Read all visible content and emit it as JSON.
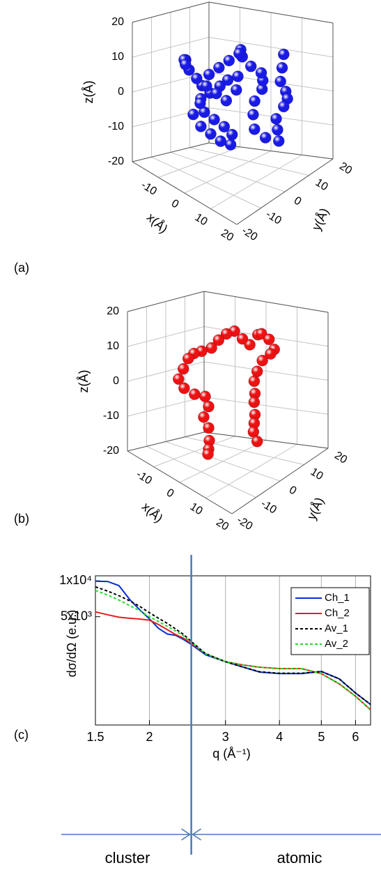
{
  "chart_data": [
    {
      "type": "scatter3d",
      "panel": "(a)",
      "color": "#1a1ae6",
      "xlabel": "x(Å)",
      "ylabel": "y(Å)",
      "zlabel": "z(Å)",
      "xlim": [
        -20,
        20
      ],
      "ylim": [
        -20,
        20
      ],
      "zlim": [
        -20,
        20
      ],
      "xticks": [
        -10,
        0,
        10,
        20
      ],
      "yticks": [
        -20,
        -10,
        0,
        10,
        20
      ],
      "zticks": [
        -20,
        -10,
        0,
        10,
        20
      ],
      "x": [
        10,
        11,
        12,
        13,
        12,
        10,
        9,
        11,
        13,
        10,
        7,
        5,
        4,
        5,
        6,
        7,
        5,
        2,
        0,
        -2,
        -4,
        -6,
        -8,
        -9,
        -8,
        -6,
        -4,
        -2,
        0,
        1,
        -1,
        -3,
        -5,
        -7,
        -6,
        -4,
        -2,
        0,
        2,
        3,
        1,
        -1,
        -3,
        -5,
        -7,
        -9,
        -11,
        -12
      ],
      "y": [
        12,
        10,
        8,
        9,
        11,
        12,
        10,
        8,
        6,
        4,
        3,
        5,
        7,
        9,
        8,
        6,
        4,
        4,
        6,
        8,
        6,
        4,
        2,
        0,
        -2,
        -3,
        -1,
        1,
        2,
        0,
        -2,
        -4,
        -6,
        -7,
        -5,
        -3,
        -1,
        0,
        2,
        0,
        -2,
        -4,
        -6,
        -8,
        -9,
        -8,
        -6,
        -4
      ],
      "z": [
        12,
        9,
        6,
        3,
        0,
        -3,
        -6,
        -8,
        -10,
        -9,
        -7,
        -4,
        -1,
        2,
        5,
        8,
        10,
        12,
        13,
        11,
        9,
        7,
        5,
        2,
        -1,
        -4,
        -6,
        -8,
        -10,
        -12,
        -11,
        -9,
        -7,
        -4,
        -1,
        2,
        4,
        6,
        7,
        4,
        1,
        3,
        5,
        7,
        9,
        11,
        10,
        8
      ]
    },
    {
      "type": "scatter3d",
      "panel": "(b)",
      "color": "#ee1111",
      "xlabel": "x(Å)",
      "ylabel": "y(Å)",
      "zlabel": "z(Å)",
      "xlim": [
        -20,
        20
      ],
      "ylim": [
        -20,
        20
      ],
      "zlim": [
        -20,
        20
      ],
      "xticks": [
        -10,
        0,
        10,
        20
      ],
      "yticks": [
        -20,
        -10,
        0,
        10,
        20
      ],
      "zticks": [
        -20,
        -10,
        0,
        10,
        20
      ],
      "x": [
        6,
        8,
        9,
        10,
        8,
        6,
        5,
        4,
        5,
        4,
        5,
        4,
        3,
        5,
        4,
        3,
        1,
        -1,
        -3,
        -4,
        -6,
        -8,
        -10,
        -11,
        -12,
        -10,
        -7,
        -4,
        -2,
        -3,
        -2,
        -1,
        -2,
        -3
      ],
      "y": [
        8,
        7,
        9,
        10,
        11,
        10,
        9,
        9,
        8,
        9,
        8,
        9,
        10,
        9,
        7,
        5,
        4,
        3,
        2,
        0,
        -2,
        -3,
        -3,
        -4,
        -5,
        -5,
        -4,
        -3,
        -4,
        -5,
        -4,
        -5,
        -4,
        -3
      ],
      "z": [
        15,
        16,
        14,
        11,
        9,
        7,
        4,
        1,
        -2,
        -5,
        -8,
        -11,
        -14,
        -16,
        12,
        14,
        16,
        15,
        13,
        11,
        10,
        9,
        7,
        4,
        1,
        -1,
        -2,
        -2,
        -4,
        -7,
        -10,
        -13,
        -16,
        -18
      ]
    },
    {
      "type": "line",
      "panel": "(c)",
      "xlabel": "q (Å⁻¹)",
      "ylabel": "dσ/dΩ (e.u.)",
      "xscale": "log",
      "yscale": "log",
      "grid": "x",
      "legend": "upper right",
      "xlim": [
        1.5,
        6.5
      ],
      "ylim": [
        620,
        11000
      ],
      "xticks": [
        1.5,
        2,
        3,
        4,
        5,
        6
      ],
      "yticks": [
        {
          "value": 10000,
          "label": "1x10⁴"
        },
        {
          "value": 5000,
          "label": "5x10³"
        }
      ],
      "x": [
        1.5,
        1.6,
        1.7,
        1.8,
        1.9,
        2.0,
        2.1,
        2.2,
        2.3,
        2.4,
        2.5,
        2.7,
        3.0,
        3.3,
        3.6,
        4.0,
        4.5,
        5.0,
        5.5,
        6.0,
        6.5
      ],
      "series": [
        {
          "name": "Ch_1",
          "color": "#0a2fd0",
          "dash": "solid",
          "values": [
            9900,
            9870,
            9110,
            6980,
            5710,
            4800,
            4000,
            3580,
            3490,
            3220,
            2930,
            2400,
            2100,
            1890,
            1720,
            1670,
            1670,
            1740,
            1510,
            1150,
            920
          ]
        },
        {
          "name": "Ch_2",
          "color": "#e0201a",
          "dash": "solid",
          "values": [
            5490,
            5200,
            4950,
            4850,
            4780,
            4680,
            4300,
            3900,
            3550,
            3300,
            3000,
            2450,
            2100,
            1970,
            1890,
            1840,
            1840,
            1670,
            1370,
            1080,
            830
          ]
        },
        {
          "name": "Av_1",
          "color": "#000000",
          "dash": "dashed",
          "values": [
            8900,
            8200,
            7500,
            6800,
            6100,
            5400,
            4850,
            4400,
            3950,
            3550,
            3100,
            2450,
            2100,
            1890,
            1730,
            1680,
            1680,
            1740,
            1510,
            1150,
            920
          ]
        },
        {
          "name": "Av_2",
          "color": "#22dd22",
          "dash": "dashed",
          "values": [
            8300,
            7600,
            6900,
            6200,
            5600,
            5000,
            4550,
            4150,
            3800,
            3450,
            3050,
            2450,
            2100,
            1970,
            1890,
            1840,
            1840,
            1670,
            1370,
            1080,
            830
          ]
        }
      ],
      "divider": {
        "x": 2.5,
        "left": "cluster",
        "right": "atomic"
      }
    }
  ]
}
